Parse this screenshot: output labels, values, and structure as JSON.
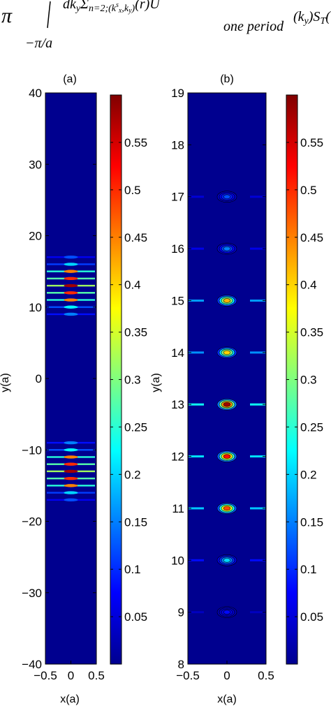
{
  "equation_fragment": {
    "pi_symbol": "π",
    "integral_upper": "",
    "integral_lower": "−π/a",
    "integrand": "dk_yΣ_{n=2;(k_x^s,k_y)}(r)U_{one period}(k_y)S_T(",
    "subscript_text": "one period"
  },
  "chart_data": [
    {
      "type": "heatmap",
      "panel_label": "(a)",
      "xlabel": "x(a)",
      "ylabel": "y(a)",
      "xlim": [
        -0.5,
        0.5
      ],
      "ylim": [
        -40,
        40
      ],
      "xticks": [
        "−0.5",
        "0",
        "0.5"
      ],
      "yticks": [
        "40",
        "30",
        "20",
        "10",
        "0",
        "−10",
        "−20",
        "−30",
        "−40"
      ],
      "colorbar": {
        "range": [
          0,
          0.6
        ],
        "ticks": [
          "0.55",
          "0.5",
          "0.45",
          "0.4",
          "0.35",
          "0.3",
          "0.25",
          "0.2",
          "0.15",
          "0.1",
          "0.05"
        ]
      },
      "features": [
        {
          "y": 9,
          "value": 0.15
        },
        {
          "y": 10,
          "value": 0.22
        },
        {
          "y": 11,
          "value": 0.45
        },
        {
          "y": 12,
          "value": 0.5
        },
        {
          "y": 13,
          "value": 0.58
        },
        {
          "y": 14,
          "value": 0.5
        },
        {
          "y": 15,
          "value": 0.45
        },
        {
          "y": 16,
          "value": 0.2
        },
        {
          "y": 17,
          "value": 0.12
        },
        {
          "y": -9,
          "value": 0.15
        },
        {
          "y": -10,
          "value": 0.22
        },
        {
          "y": -11,
          "value": 0.45
        },
        {
          "y": -12,
          "value": 0.5
        },
        {
          "y": -13,
          "value": 0.58
        },
        {
          "y": -14,
          "value": 0.5
        },
        {
          "y": -15,
          "value": 0.45
        },
        {
          "y": -16,
          "value": 0.2
        },
        {
          "y": -17,
          "value": 0.12
        }
      ]
    },
    {
      "type": "heatmap",
      "panel_label": "(b)",
      "xlabel": "x(a)",
      "ylabel": "y(a)",
      "xlim": [
        -0.5,
        0.5
      ],
      "ylim": [
        8,
        19
      ],
      "xticks": [
        "−0.5",
        "0",
        "0.5"
      ],
      "yticks": [
        "19",
        "18",
        "17",
        "16",
        "15",
        "14",
        "13",
        "12",
        "11",
        "10",
        "9",
        "8"
      ],
      "colorbar": {
        "range": [
          0,
          0.6
        ],
        "ticks": [
          "0.55",
          "0.5",
          "0.45",
          "0.4",
          "0.35",
          "0.3",
          "0.25",
          "0.2",
          "0.15",
          "0.1",
          "0.05"
        ]
      },
      "features": [
        {
          "y": 17,
          "value": 0.12
        },
        {
          "y": 16,
          "value": 0.15
        },
        {
          "y": 15,
          "value": 0.42
        },
        {
          "y": 14,
          "value": 0.4
        },
        {
          "y": 13,
          "value": 0.58
        },
        {
          "y": 12,
          "value": 0.52
        },
        {
          "y": 11,
          "value": 0.48
        },
        {
          "y": 10,
          "value": 0.2
        },
        {
          "y": 9,
          "value": 0.08
        }
      ]
    }
  ],
  "colors": {
    "background": "#00008F",
    "frame": "#000000"
  }
}
